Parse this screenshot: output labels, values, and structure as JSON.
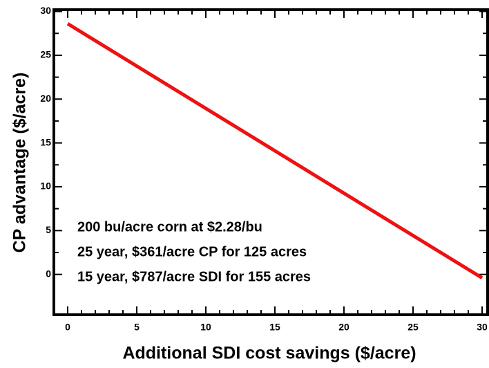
{
  "chart_data": {
    "type": "line",
    "x_label": "Additional SDI cost savings ($/acre)",
    "y_label": "CP advantage ($/acre)",
    "annotations": [
      "200 bu/acre corn at $2.28/bu",
      "25 year, $361/acre CP for 125 acres",
      "15 year, $787/acre SDI for 155 acres"
    ],
    "x": [
      0,
      30
    ],
    "series": [
      {
        "color": "#ee1111",
        "values": [
          28.6,
          -0.4
        ]
      }
    ],
    "xlim": [
      -1,
      30.4
    ],
    "ylim": [
      -4.6,
      30.2
    ],
    "xticks": [
      0,
      5,
      10,
      15,
      20,
      25,
      30
    ],
    "yticks": [
      0,
      5,
      10,
      15,
      20,
      25,
      30
    ]
  }
}
